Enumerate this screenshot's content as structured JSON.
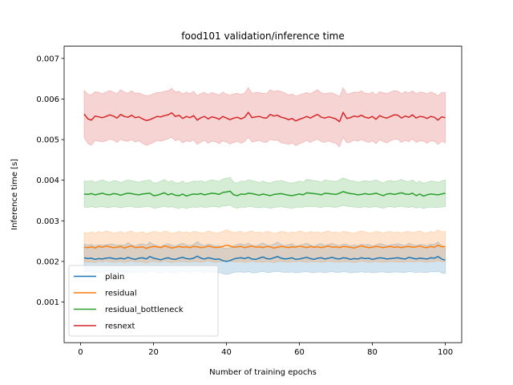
{
  "chart_data": {
    "type": "line",
    "title": "food101 validation/inference time",
    "xlabel": "Number of training epochs",
    "ylabel": "Inference time [s]",
    "xlim": [
      -4.5,
      104.5
    ],
    "ylim": [
      0.0,
      0.0073
    ],
    "xticks": [
      0,
      20,
      40,
      60,
      80,
      100
    ],
    "yticks": [
      0.001,
      0.002,
      0.003,
      0.004,
      0.005,
      0.006,
      0.007
    ],
    "ytick_labels": [
      "0.001",
      "0.002",
      "0.003",
      "0.004",
      "0.005",
      "0.006",
      "0.007"
    ],
    "legend_position": "lower-left",
    "grid": false,
    "x_start": 1,
    "x_end": 100,
    "series": [
      {
        "name": "plain",
        "color": "#1f77b4",
        "mean": [
          0.00209,
          0.00207,
          0.00208,
          0.00205,
          0.00207,
          0.00206,
          0.00208,
          0.00209,
          0.00207,
          0.00206,
          0.00208,
          0.00206,
          0.0021,
          0.00207,
          0.00205,
          0.00208,
          0.00209,
          0.00206,
          0.00212,
          0.00208,
          0.00206,
          0.00204,
          0.00207,
          0.00209,
          0.00206,
          0.00205,
          0.00208,
          0.0021,
          0.00207,
          0.00206,
          0.00208,
          0.00213,
          0.00208,
          0.00206,
          0.00209,
          0.00207,
          0.00205,
          0.00206,
          0.00202,
          0.002,
          0.00202,
          0.00206,
          0.00208,
          0.00209,
          0.00207,
          0.0021,
          0.00206,
          0.00205,
          0.00208,
          0.00211,
          0.00207,
          0.00206,
          0.00209,
          0.00212,
          0.00208,
          0.00206,
          0.00207,
          0.00209,
          0.00205,
          0.00206,
          0.00208,
          0.0021,
          0.00207,
          0.00205,
          0.00208,
          0.00209,
          0.00206,
          0.00208,
          0.0021,
          0.00207,
          0.00206,
          0.00209,
          0.00208,
          0.00205,
          0.00207,
          0.00206,
          0.00209,
          0.00207,
          0.00208,
          0.00205,
          0.00207,
          0.00209,
          0.00208,
          0.00206,
          0.00207,
          0.00208,
          0.00209,
          0.00207,
          0.00206,
          0.0021,
          0.00208,
          0.00206,
          0.00208,
          0.00207,
          0.00206,
          0.00209,
          0.00208,
          0.00212,
          0.00206,
          0.00203
        ],
        "std": [
          0.00034,
          0.00033,
          0.00034,
          0.00033,
          0.00034,
          0.00034,
          0.00033,
          0.00034,
          0.00035,
          0.00034,
          0.00033,
          0.00034,
          0.00036,
          0.00034,
          0.00033,
          0.00034,
          0.00035,
          0.00034,
          0.00036,
          0.00034,
          0.00033,
          0.00033,
          0.00034,
          0.00035,
          0.00034,
          0.00033,
          0.00034,
          0.00035,
          0.00034,
          0.00033,
          0.00034,
          0.00036,
          0.00034,
          0.00033,
          0.00034,
          0.00034,
          0.00033,
          0.00033,
          0.00032,
          0.00032,
          0.00032,
          0.00033,
          0.00034,
          0.00035,
          0.00034,
          0.00035,
          0.00034,
          0.00033,
          0.00034,
          0.00035,
          0.00034,
          0.00033,
          0.00034,
          0.00036,
          0.00034,
          0.00033,
          0.00034,
          0.00035,
          0.00033,
          0.00033,
          0.00034,
          0.00035,
          0.00034,
          0.00033,
          0.00034,
          0.00035,
          0.00034,
          0.00034,
          0.00035,
          0.00034,
          0.00033,
          0.00034,
          0.00034,
          0.00033,
          0.00034,
          0.00033,
          0.00034,
          0.00034,
          0.00034,
          0.00033,
          0.00034,
          0.00035,
          0.00034,
          0.00033,
          0.00034,
          0.00034,
          0.00035,
          0.00034,
          0.00033,
          0.00035,
          0.00034,
          0.00033,
          0.00034,
          0.00034,
          0.00033,
          0.00034,
          0.00034,
          0.00036,
          0.00034,
          0.00033
        ]
      },
      {
        "name": "residual",
        "color": "#ff7f0e",
        "mean": [
          0.00235,
          0.00234,
          0.00236,
          0.00233,
          0.00237,
          0.00235,
          0.00238,
          0.00236,
          0.00234,
          0.00235,
          0.00237,
          0.00233,
          0.00236,
          0.00238,
          0.00234,
          0.00235,
          0.00236,
          0.00232,
          0.00235,
          0.00237,
          0.00236,
          0.00234,
          0.00238,
          0.00236,
          0.00233,
          0.00235,
          0.00237,
          0.00235,
          0.00236,
          0.00234,
          0.00237,
          0.00236,
          0.00234,
          0.00235,
          0.00238,
          0.00236,
          0.00234,
          0.00235,
          0.00237,
          0.0024,
          0.00238,
          0.00235,
          0.00236,
          0.00237,
          0.00234,
          0.00236,
          0.00238,
          0.00235,
          0.00236,
          0.00234,
          0.00237,
          0.00236,
          0.00233,
          0.00235,
          0.00237,
          0.00236,
          0.00234,
          0.00236,
          0.00235,
          0.00238,
          0.00236,
          0.00234,
          0.00237,
          0.00235,
          0.00236,
          0.00234,
          0.00236,
          0.00238,
          0.00235,
          0.00236,
          0.00234,
          0.00237,
          0.00236,
          0.00235,
          0.00233,
          0.00236,
          0.00238,
          0.00236,
          0.00234,
          0.00235,
          0.00237,
          0.00236,
          0.00234,
          0.00236,
          0.00237,
          0.00235,
          0.00236,
          0.00234,
          0.00236,
          0.00237,
          0.00235,
          0.00236,
          0.00238,
          0.00235,
          0.00234,
          0.00237,
          0.00235,
          0.0024,
          0.00236,
          0.00237
        ],
        "std": [
          0.00036,
          0.00036,
          0.00037,
          0.00036,
          0.00037,
          0.00036,
          0.00037,
          0.00037,
          0.00036,
          0.00036,
          0.00037,
          0.00036,
          0.00037,
          0.00037,
          0.00036,
          0.00036,
          0.00037,
          0.00036,
          0.00036,
          0.00037,
          0.00037,
          0.00036,
          0.00037,
          0.00037,
          0.00036,
          0.00036,
          0.00037,
          0.00036,
          0.00037,
          0.00036,
          0.00037,
          0.00037,
          0.00036,
          0.00036,
          0.00037,
          0.00037,
          0.00036,
          0.00036,
          0.00037,
          0.00038,
          0.00037,
          0.00036,
          0.00037,
          0.00037,
          0.00036,
          0.00037,
          0.00037,
          0.00036,
          0.00037,
          0.00036,
          0.00037,
          0.00037,
          0.00036,
          0.00036,
          0.00037,
          0.00037,
          0.00036,
          0.00037,
          0.00036,
          0.00037,
          0.00037,
          0.00036,
          0.00037,
          0.00036,
          0.00037,
          0.00036,
          0.00037,
          0.00037,
          0.00036,
          0.00037,
          0.00036,
          0.00037,
          0.00037,
          0.00036,
          0.00036,
          0.00037,
          0.00037,
          0.00037,
          0.00036,
          0.00036,
          0.00037,
          0.00037,
          0.00036,
          0.00037,
          0.00037,
          0.00036,
          0.00037,
          0.00036,
          0.00037,
          0.00037,
          0.00036,
          0.00037,
          0.00037,
          0.00036,
          0.00036,
          0.00037,
          0.00036,
          0.00038,
          0.00037,
          0.00037
        ]
      },
      {
        "name": "residual_bottleneck",
        "color": "#2ca02c",
        "mean": [
          0.00366,
          0.00365,
          0.00367,
          0.00364,
          0.00366,
          0.00368,
          0.00365,
          0.00364,
          0.00367,
          0.00366,
          0.00363,
          0.00366,
          0.00368,
          0.00367,
          0.00365,
          0.00364,
          0.00366,
          0.00367,
          0.00368,
          0.00362,
          0.00363,
          0.00366,
          0.00369,
          0.00364,
          0.00367,
          0.00363,
          0.00362,
          0.00366,
          0.00361,
          0.00364,
          0.00366,
          0.00365,
          0.00367,
          0.00364,
          0.00366,
          0.00368,
          0.00367,
          0.00365,
          0.0037,
          0.00371,
          0.00373,
          0.00364,
          0.00362,
          0.00366,
          0.00365,
          0.00368,
          0.00367,
          0.00365,
          0.00363,
          0.00366,
          0.00364,
          0.00362,
          0.00365,
          0.00366,
          0.00367,
          0.00365,
          0.00363,
          0.00362,
          0.00364,
          0.00366,
          0.00364,
          0.00369,
          0.00368,
          0.00367,
          0.00366,
          0.00364,
          0.00368,
          0.00367,
          0.00366,
          0.00365,
          0.00368,
          0.00372,
          0.00369,
          0.00367,
          0.00366,
          0.00364,
          0.00365,
          0.00367,
          0.00365,
          0.00366,
          0.00368,
          0.00365,
          0.00362,
          0.00366,
          0.00367,
          0.00365,
          0.00367,
          0.00369,
          0.00366,
          0.00365,
          0.00368,
          0.00362,
          0.00366,
          0.00361,
          0.00364,
          0.00366,
          0.00365,
          0.00364,
          0.00366,
          0.00368
        ],
        "std": [
          0.00032,
          0.00032,
          0.00032,
          0.00031,
          0.00032,
          0.00033,
          0.00032,
          0.00031,
          0.00032,
          0.00032,
          0.00031,
          0.00032,
          0.00033,
          0.00032,
          0.00032,
          0.00031,
          0.00032,
          0.00032,
          0.00033,
          0.00031,
          0.00031,
          0.00032,
          0.00033,
          0.00031,
          0.00032,
          0.00031,
          0.00031,
          0.00032,
          0.00031,
          0.00031,
          0.00032,
          0.00032,
          0.00032,
          0.00031,
          0.00032,
          0.00033,
          0.00032,
          0.00032,
          0.00033,
          0.00034,
          0.00034,
          0.00031,
          0.00031,
          0.00032,
          0.00032,
          0.00033,
          0.00032,
          0.00032,
          0.00031,
          0.00032,
          0.00031,
          0.00031,
          0.00032,
          0.00032,
          0.00032,
          0.00032,
          0.00031,
          0.00031,
          0.00031,
          0.00032,
          0.00031,
          0.00033,
          0.00033,
          0.00032,
          0.00032,
          0.00031,
          0.00033,
          0.00032,
          0.00032,
          0.00032,
          0.00033,
          0.00034,
          0.00033,
          0.00032,
          0.00032,
          0.00031,
          0.00032,
          0.00032,
          0.00032,
          0.00032,
          0.00033,
          0.00032,
          0.00031,
          0.00032,
          0.00032,
          0.00032,
          0.00032,
          0.00033,
          0.00032,
          0.00032,
          0.00033,
          0.00031,
          0.00032,
          0.00031,
          0.00031,
          0.00032,
          0.00032,
          0.00031,
          0.00032,
          0.00033
        ]
      },
      {
        "name": "resnext",
        "color": "#d62728",
        "mean": [
          0.00563,
          0.00551,
          0.00548,
          0.00558,
          0.00556,
          0.00554,
          0.00557,
          0.00561,
          0.00558,
          0.00553,
          0.00562,
          0.00557,
          0.00555,
          0.0056,
          0.00554,
          0.00556,
          0.00551,
          0.00547,
          0.00549,
          0.00553,
          0.00557,
          0.00556,
          0.00559,
          0.00561,
          0.00566,
          0.00557,
          0.0056,
          0.00552,
          0.00557,
          0.00554,
          0.00559,
          0.00548,
          0.00554,
          0.00557,
          0.00551,
          0.00556,
          0.00554,
          0.0055,
          0.00557,
          0.00553,
          0.00549,
          0.00553,
          0.00555,
          0.00551,
          0.00555,
          0.00567,
          0.00554,
          0.00556,
          0.00557,
          0.00554,
          0.00553,
          0.00562,
          0.00558,
          0.0056,
          0.00555,
          0.00553,
          0.00549,
          0.00552,
          0.00546,
          0.0055,
          0.00553,
          0.00557,
          0.00553,
          0.00558,
          0.00562,
          0.00555,
          0.00553,
          0.00556,
          0.00554,
          0.00551,
          0.00544,
          0.00567,
          0.00552,
          0.00554,
          0.00558,
          0.00556,
          0.0056,
          0.00555,
          0.00553,
          0.00557,
          0.0055,
          0.00559,
          0.00555,
          0.00553,
          0.00557,
          0.00561,
          0.0056,
          0.00553,
          0.00558,
          0.00555,
          0.00561,
          0.00553,
          0.00557,
          0.00556,
          0.00552,
          0.00557,
          0.00555,
          0.00548,
          0.00556,
          0.00554
        ],
        "std": [
          0.00058,
          0.00061,
          0.00062,
          0.0006,
          0.0006,
          0.00059,
          0.0006,
          0.0006,
          0.00059,
          0.0006,
          0.00061,
          0.0006,
          0.00059,
          0.0006,
          0.0006,
          0.00059,
          0.0006,
          0.00061,
          0.0006,
          0.0006,
          0.00059,
          0.0006,
          0.0006,
          0.00059,
          0.0006,
          0.0006,
          0.00059,
          0.0006,
          0.0006,
          0.00059,
          0.0006,
          0.0006,
          0.0006,
          0.00059,
          0.0006,
          0.0006,
          0.00059,
          0.0006,
          0.0006,
          0.00059,
          0.0006,
          0.0006,
          0.00059,
          0.0006,
          0.0006,
          0.00061,
          0.0006,
          0.0006,
          0.00059,
          0.0006,
          0.0006,
          0.00061,
          0.0006,
          0.00061,
          0.00063,
          0.00062,
          0.00061,
          0.0006,
          0.00061,
          0.0006,
          0.0006,
          0.00059,
          0.0006,
          0.0006,
          0.00061,
          0.0006,
          0.0006,
          0.00059,
          0.00061,
          0.0006,
          0.00062,
          0.00061,
          0.0006,
          0.0006,
          0.00059,
          0.0006,
          0.0006,
          0.00059,
          0.0006,
          0.0006,
          0.0006,
          0.00059,
          0.0006,
          0.00061,
          0.0006,
          0.0006,
          0.00059,
          0.0006,
          0.0006,
          0.0006,
          0.00059,
          0.0006,
          0.0006,
          0.0006,
          0.00061,
          0.0006,
          0.00059,
          0.0006,
          0.0006,
          0.00062
        ]
      }
    ]
  }
}
